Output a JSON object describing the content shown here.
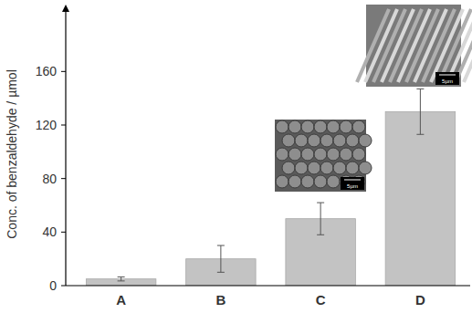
{
  "chart_data": {
    "type": "bar",
    "y_label": "Conc. of benzaldehyde / µmol",
    "categories": [
      "A",
      "B",
      "C",
      "D"
    ],
    "values": [
      5,
      20,
      50,
      130
    ],
    "errors": [
      1.5,
      10,
      12,
      17
    ],
    "color": "#c3c3c3",
    "ylim": [
      0,
      210
    ],
    "yticks": [
      0,
      40,
      80,
      120,
      160
    ],
    "grid": false,
    "annotations": [
      "5µm",
      "5µm"
    ]
  }
}
